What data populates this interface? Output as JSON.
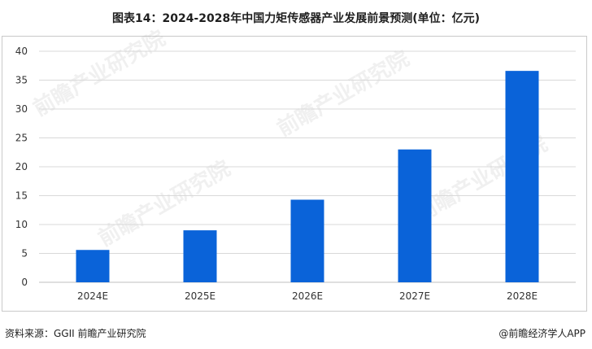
{
  "title": "图表14：2024-2028年中国力矩传感器产业发展前景预测(单位：亿元)",
  "source": "资料来源：GGII 前瞻产业研究院",
  "credit": "@前瞻经济学人APP",
  "watermark": "前瞻产业研究院",
  "colors": {
    "bar": "#0A63D9",
    "grid": "#d9d9d9",
    "axis": "#bfbfbf",
    "tick": "#333333"
  },
  "chart_data": {
    "type": "bar",
    "categories": [
      "2024E",
      "2025E",
      "2026E",
      "2027E",
      "2028E"
    ],
    "values": [
      5.6,
      9.0,
      14.3,
      23.0,
      36.6
    ],
    "ylim": [
      0,
      40
    ],
    "yticks": [
      0,
      5,
      10,
      15,
      20,
      25,
      30,
      35,
      40
    ],
    "grid": true,
    "legend": "none"
  }
}
